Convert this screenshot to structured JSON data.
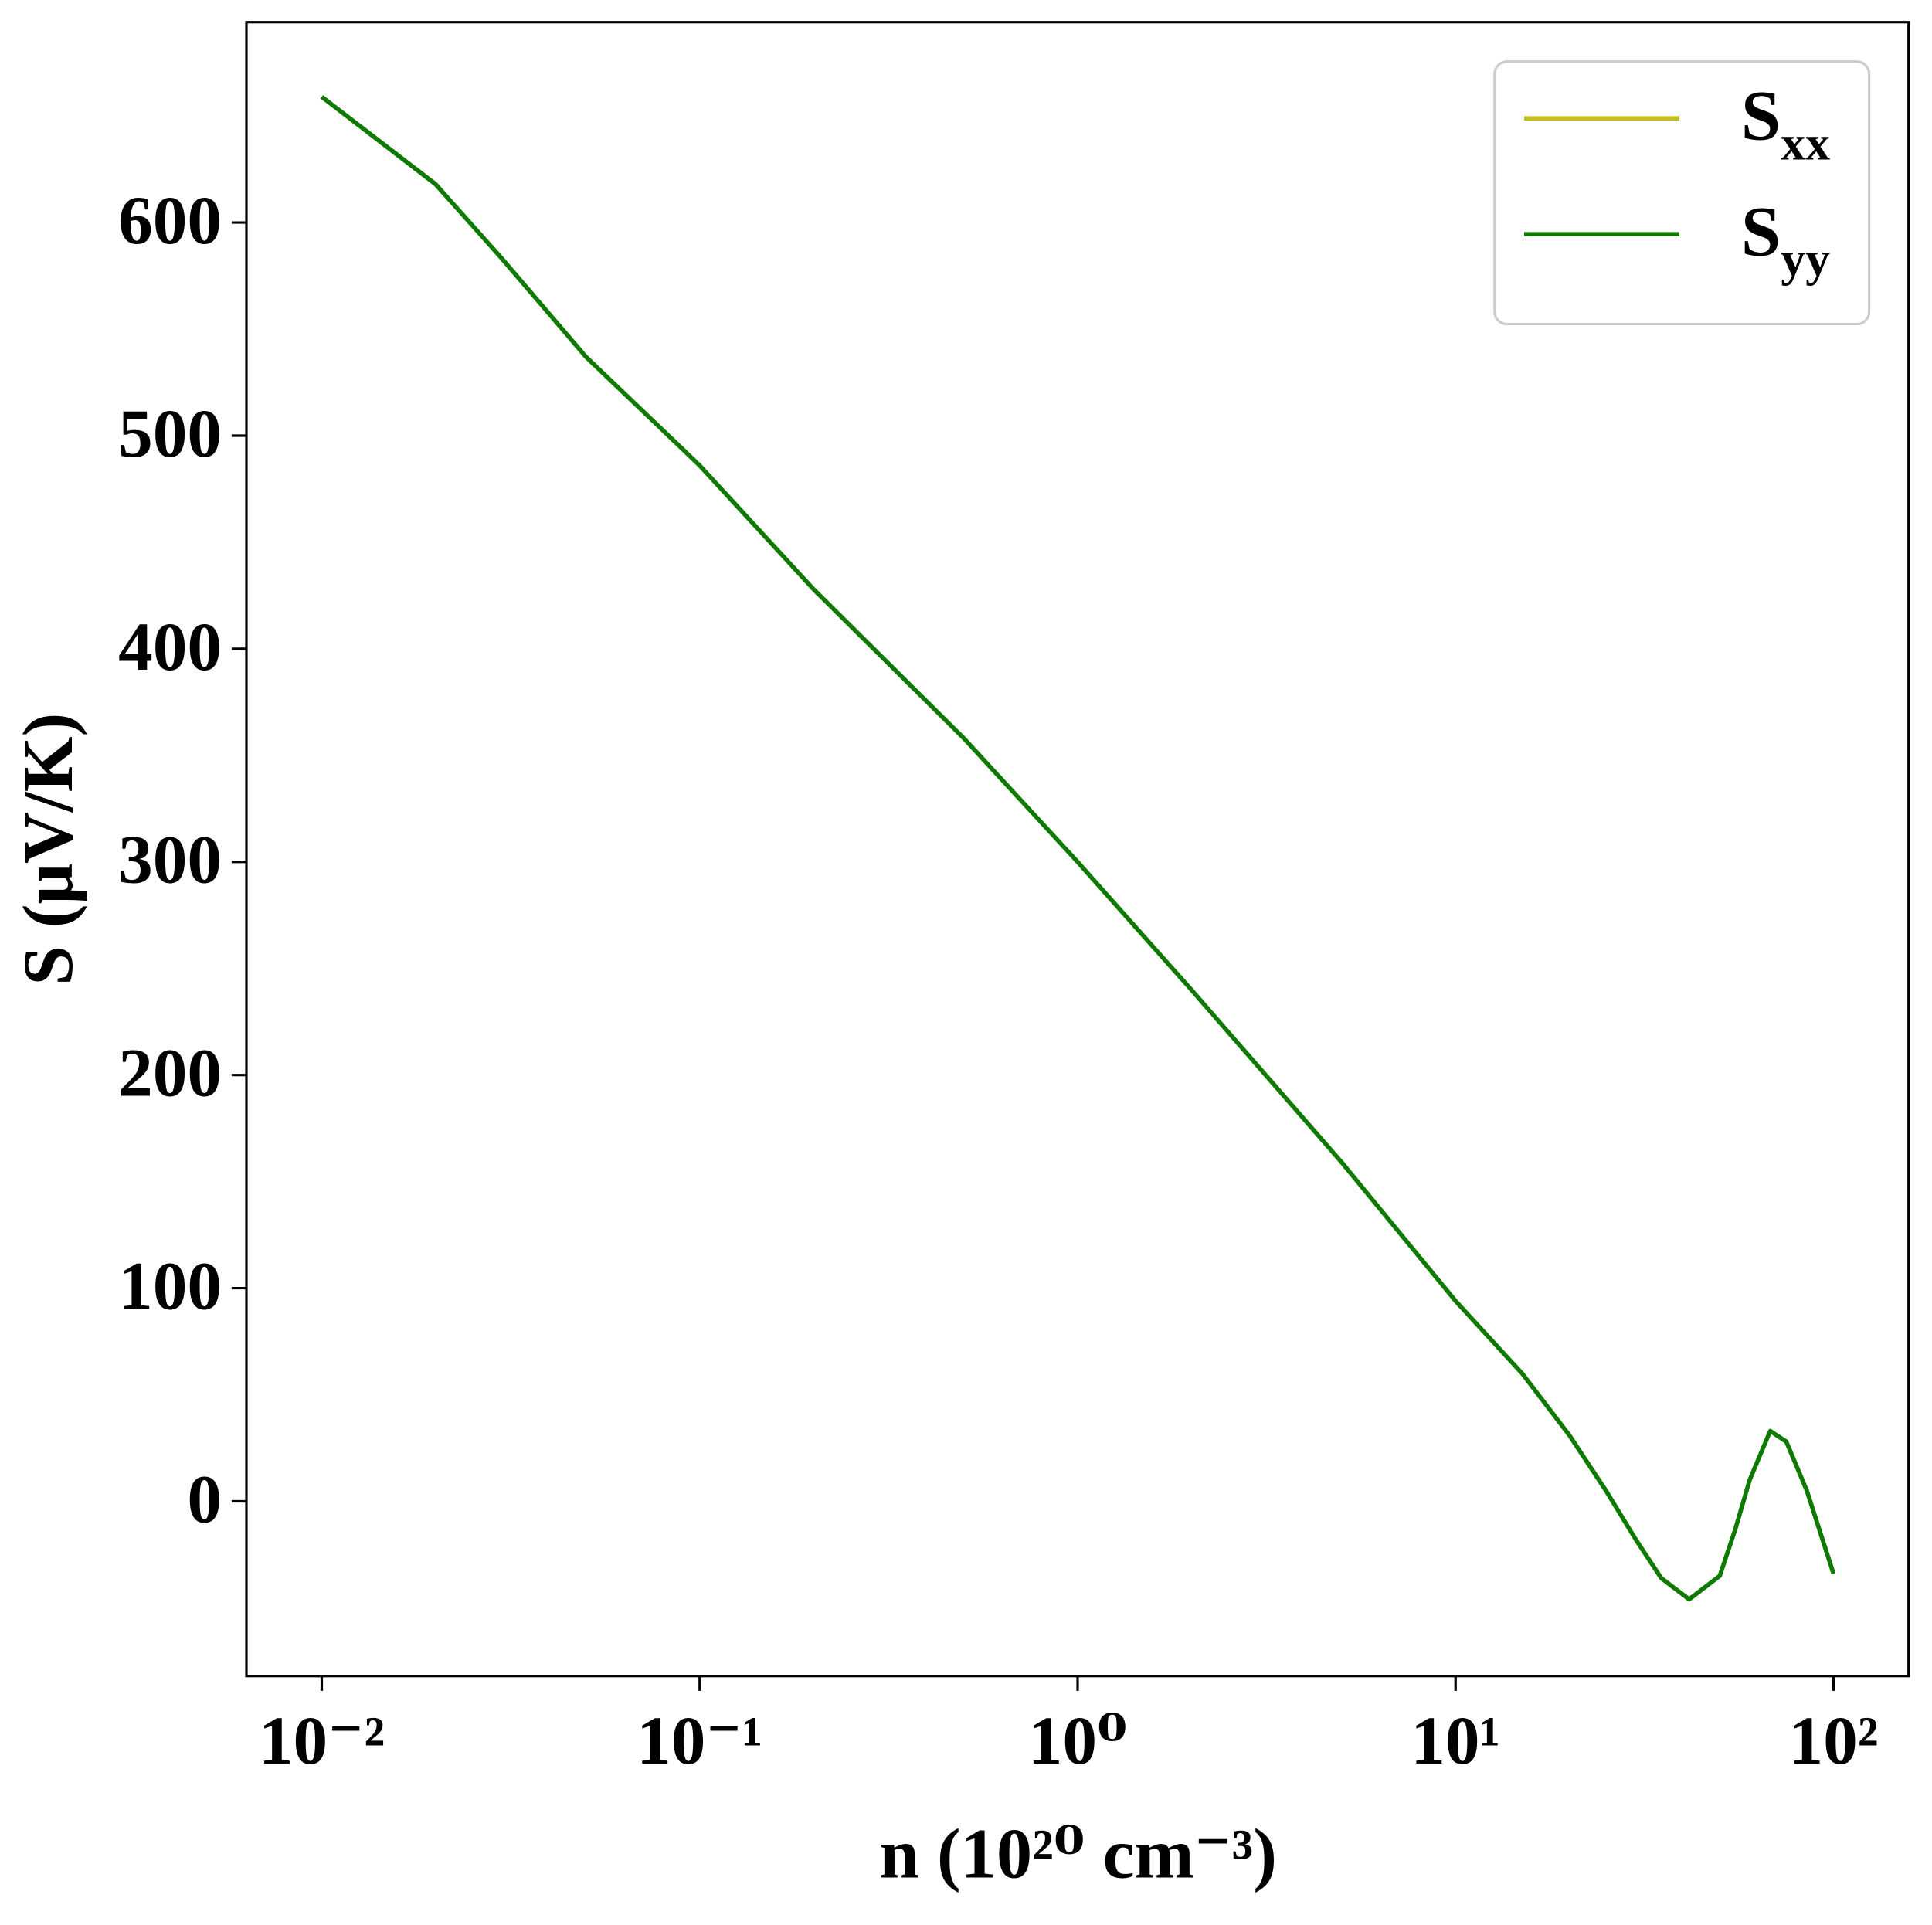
{
  "chart_data": {
    "type": "line",
    "xlabel": "n (10²⁰ cm⁻³)",
    "ylabel": "S (μV/K)",
    "xscale": "log",
    "xlim": [
      0.00632,
      158
    ],
    "ylim": [
      -82,
      694
    ],
    "xticks": [
      {
        "value": 0.01,
        "label": "10⁻²"
      },
      {
        "value": 0.1,
        "label": "10⁻¹"
      },
      {
        "value": 1,
        "label": "10⁰"
      },
      {
        "value": 10,
        "label": "10¹"
      },
      {
        "value": 100,
        "label": "10²"
      }
    ],
    "yticks": [
      0,
      100,
      200,
      300,
      400,
      500,
      600
    ],
    "legend": "upper right",
    "x": [
      0.01,
      0.02,
      0.03,
      0.05,
      0.1,
      0.2,
      0.5,
      1,
      2,
      5,
      10,
      15,
      20,
      25,
      30,
      35,
      41.5,
      50,
      55,
      60,
      68,
      75,
      85,
      100
    ],
    "series": [
      {
        "name": "Sxx",
        "color": "#c2be1a",
        "values": [
          659,
          618,
          583,
          537,
          486,
          428,
          358,
          300,
          240,
          159,
          94,
          60,
          31,
          5,
          -18,
          -36,
          -46,
          -35,
          -13,
          10,
          33,
          28,
          5,
          -34
        ]
      },
      {
        "name": "Syy",
        "color": "#0d7a05",
        "values": [
          659,
          618,
          583,
          537,
          486,
          428,
          358,
          300,
          240,
          159,
          94,
          60,
          31,
          5,
          -18,
          -36,
          -46,
          -35,
          -13,
          10,
          33,
          28,
          5,
          -34
        ]
      }
    ]
  }
}
